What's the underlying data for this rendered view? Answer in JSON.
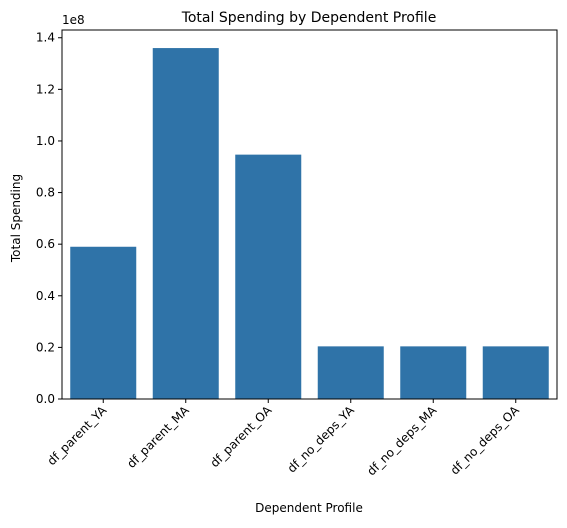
{
  "chart_data": {
    "type": "bar",
    "title": "Total Spending by Dependent Profile",
    "xlabel": "Dependent Profile",
    "ylabel": "Total Spending",
    "categories": [
      "df_parent_YA",
      "df_parent_MA",
      "df_parent_OA",
      "df_no_deps_YA",
      "df_no_deps_MA",
      "df_no_deps_OA"
    ],
    "values": [
      59000000,
      136000000,
      94700000,
      20400000,
      20400000,
      20400000
    ],
    "ylim": [
      0,
      143000000
    ],
    "yticks": [
      0,
      20000000,
      40000000,
      60000000,
      80000000,
      100000000,
      120000000,
      140000000
    ],
    "ytick_labels": [
      "0.0",
      "0.2",
      "0.4",
      "0.6",
      "0.8",
      "1.0",
      "1.2",
      "1.4"
    ],
    "y_offset_label": "1e8",
    "bar_color": "#2f73a8",
    "grid": false,
    "legend": "none"
  }
}
